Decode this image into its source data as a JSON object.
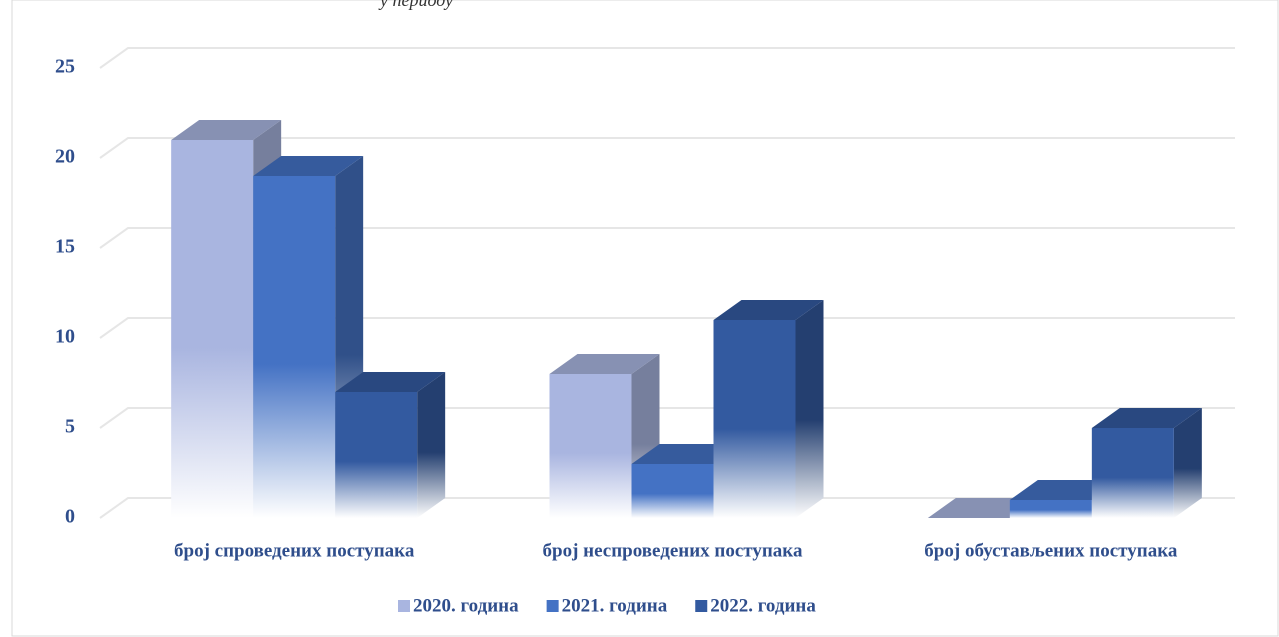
{
  "header": {
    "note": "у периоду"
  },
  "chart_data": {
    "type": "bar3d",
    "categories": [
      "број спроведених поступака",
      "број неспроведених поступака",
      "број обустављених поступака"
    ],
    "series": [
      {
        "name": "2020. година",
        "color": "#a9b5e0",
        "values": [
          21,
          8,
          0
        ]
      },
      {
        "name": "2021. година",
        "color": "#4472c4",
        "values": [
          19,
          3,
          1
        ]
      },
      {
        "name": "2022. година",
        "color": "#335aa0",
        "values": [
          7,
          11,
          5
        ]
      }
    ],
    "ylim": [
      0,
      25
    ],
    "yticks": [
      0,
      5,
      10,
      15,
      20,
      25
    ],
    "grid": true,
    "legend": "bottom"
  }
}
